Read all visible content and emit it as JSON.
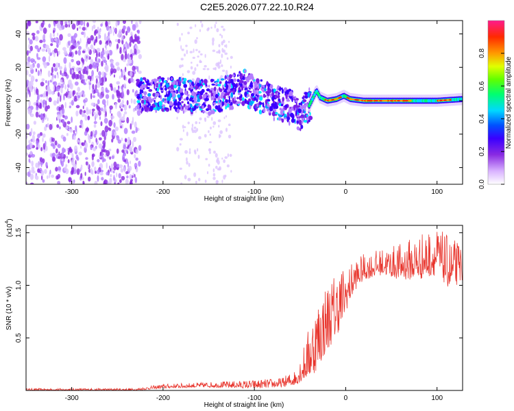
{
  "title": "C2E5.2026.077.22.10.R24",
  "chart_data": [
    {
      "type": "heatmap",
      "xlabel": "Height of straight line (km)",
      "ylabel": "Frequency (Hz)",
      "xlim": [
        -350,
        128
      ],
      "ylim": [
        -50,
        48
      ],
      "xticks": [
        -300,
        -200,
        -100,
        0,
        100
      ],
      "yticks": [
        -40,
        -20,
        0,
        20,
        40
      ],
      "ridge": {
        "x": [
          -230,
          -200,
          -150,
          -120,
          -110,
          -100,
          -90,
          -80,
          -70,
          -60,
          -50,
          -40,
          -32,
          -28,
          -20,
          -10,
          -2,
          5,
          20,
          60,
          100,
          128
        ],
        "frequency": [
          3,
          4,
          2,
          6,
          8,
          4,
          2,
          -1,
          -2,
          -4,
          -8,
          -3,
          6,
          2,
          0,
          1,
          3,
          1,
          0,
          0,
          0,
          1
        ]
      },
      "colorbar": {
        "label": "Normalized spectral amplitude",
        "range": [
          0,
          1
        ],
        "ticks": [
          "0.0",
          "0.2",
          "0.4",
          "0.6",
          "0.8"
        ]
      }
    },
    {
      "type": "line",
      "xlabel": "Height of straight line (km)",
      "ylabel": "SNR (10 * v/v)",
      "yscale_label": "(x10",
      "yscale_exp": "4",
      "xlim": [
        -350,
        128
      ],
      "ylim": [
        0,
        1.57
      ],
      "xticks": [
        -300,
        -200,
        -100,
        0,
        100
      ],
      "yticks": [
        "0.5",
        "1.0",
        "1.5"
      ],
      "color": "#e8342c",
      "envelope": {
        "x": [
          -350,
          -230,
          -200,
          -150,
          -100,
          -70,
          -55,
          -45,
          -35,
          -25,
          -15,
          -5,
          0,
          10,
          20,
          40,
          60,
          80,
          100,
          115,
          128
        ],
        "low": [
          0.0,
          0.0,
          0.02,
          0.03,
          0.02,
          0.03,
          0.05,
          0.1,
          0.15,
          0.3,
          0.45,
          0.6,
          0.75,
          0.95,
          1.05,
          1.1,
          1.05,
          1.05,
          1.1,
          0.95,
          1.05
        ],
        "high": [
          0.02,
          0.02,
          0.06,
          0.08,
          0.1,
          0.12,
          0.2,
          0.45,
          0.8,
          1.0,
          1.1,
          1.2,
          1.15,
          1.25,
          1.3,
          1.35,
          1.4,
          1.5,
          1.55,
          1.45,
          1.4
        ]
      }
    }
  ]
}
